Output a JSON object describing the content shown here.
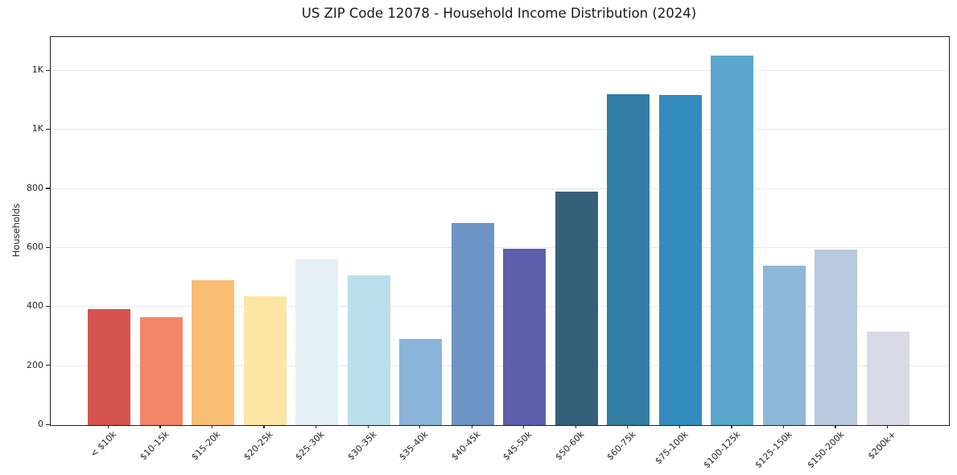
{
  "title": "US ZIP Code 12078 - Household Income Distribution (2024)",
  "chart_data": {
    "type": "bar",
    "title": "US ZIP Code 12078 - Household Income Distribution (2024)",
    "xlabel": "",
    "ylabel": "Households",
    "categories": [
      "< $10k",
      "$10-15k",
      "$15-20k",
      "$20-25k",
      "$25-30k",
      "$30-35k",
      "$35-40k",
      "$40-45k",
      "$45-50k",
      "$50-60k",
      "$60-75k",
      "$75-100k",
      "$100-125k",
      "$125-150k",
      "$150-200k",
      "$200k+"
    ],
    "values": [
      394,
      366,
      490,
      436,
      563,
      508,
      293,
      686,
      597,
      791,
      1122,
      1118,
      1252,
      540,
      594,
      316
    ],
    "bar_colors": [
      "#d5534f",
      "#f28667",
      "#fabd74",
      "#fde5a3",
      "#e4f0f6",
      "#badfec",
      "#8ab3da",
      "#6e94c6",
      "#5d5fad",
      "#36607a",
      "#337da4",
      "#348bbd",
      "#5ba7cd",
      "#90b7d8",
      "#b8c8df",
      "#d9dae8"
    ],
    "ylim": [
      0,
      1315
    ],
    "yticks": [
      {
        "value": 0,
        "label": "0"
      },
      {
        "value": 200,
        "label": "200"
      },
      {
        "value": 400,
        "label": "400"
      },
      {
        "value": 600,
        "label": "600"
      },
      {
        "value": 800,
        "label": "800"
      },
      {
        "value": 1000,
        "label": "1K"
      },
      {
        "value": 1200,
        "label": "1K"
      }
    ],
    "grid": "horizontal",
    "legend": "none",
    "x_tick_rotation_deg": 45
  },
  "colors": {
    "background": "#ffffff",
    "gridline": "#e8e8ee",
    "spine": "#1f1f1f",
    "text": "#262626"
  }
}
